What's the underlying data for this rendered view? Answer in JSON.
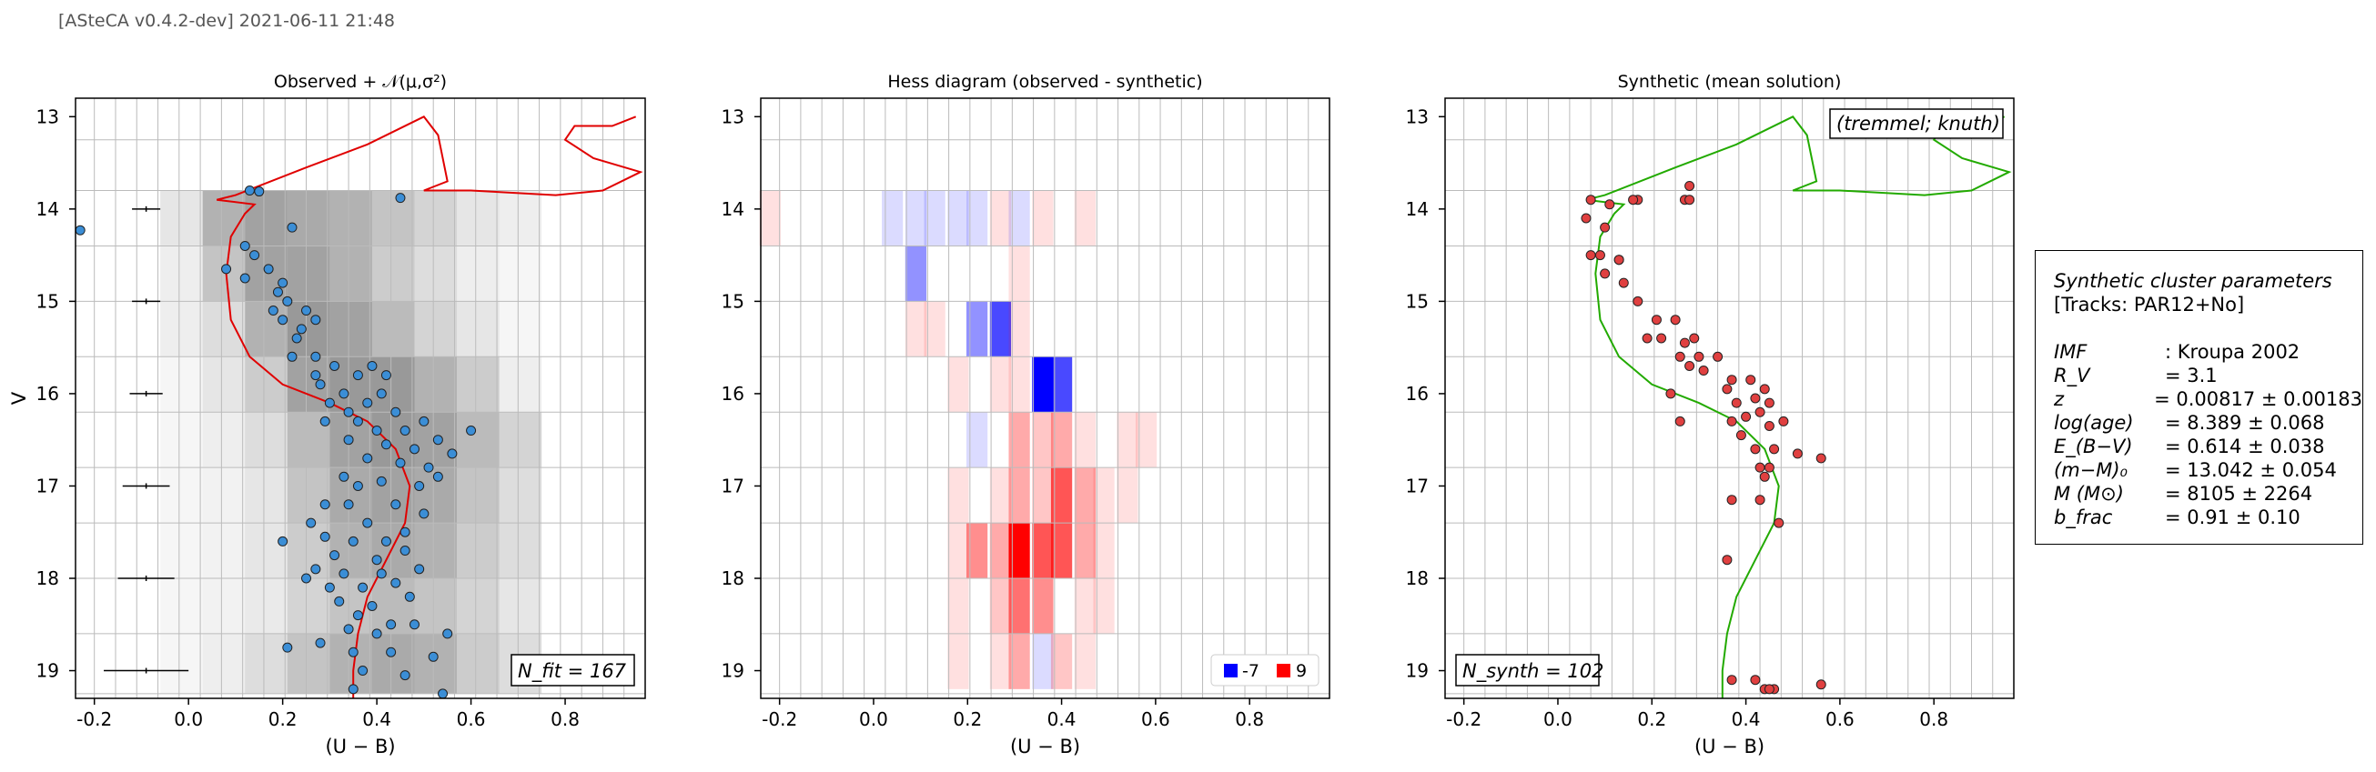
{
  "header": "[ASteCA v0.4.2-dev] 2021-06-11 21:48",
  "colors": {
    "track_observed": "#e00000",
    "track_synthetic": "#22aa00",
    "observed_points": "#3b8ed6",
    "synthetic_points": "#e04040",
    "hess_negative": "#0000ff",
    "hess_positive": "#ff0000"
  },
  "panels": [
    {
      "title": "Observed + 𝒩(μ,σ²)",
      "xlabel": "(U − B)",
      "ylabel": "V",
      "box": "N_fit = 167"
    },
    {
      "title": "Hess diagram (observed - synthetic)",
      "xlabel": "(U − B)",
      "ylabel": "",
      "legend": [
        "-7",
        "9"
      ]
    },
    {
      "title": "Synthetic (mean solution)",
      "xlabel": "(U − B)",
      "ylabel": "",
      "box": "N_synth = 102",
      "tag": "(tremmel; knuth)"
    }
  ],
  "params": {
    "title": "Synthetic cluster parameters",
    "tracks": "[Tracks: PAR12+No]",
    "rows": [
      {
        "k": "IMF",
        "v": ": Kroupa 2002"
      },
      {
        "k": "R_V",
        "v": "= 3.1"
      },
      {
        "k": "z",
        "v": "= 0.00817 ± 0.00183"
      },
      {
        "k": "log(age)",
        "v": "= 8.389 ± 0.068"
      },
      {
        "k": "E_(B−V)",
        "v": "= 0.614 ± 0.038"
      },
      {
        "k": "(m−M)₀",
        "v": "= 13.042 ± 0.054"
      },
      {
        "k": "M (M⊙)",
        "v": "= 8105 ± 2264"
      },
      {
        "k": "b_frac",
        "v": "= 0.91 ± 0.10"
      }
    ]
  },
  "chart_data": [
    {
      "type": "scatter",
      "title": "Observed + 𝒩(μ,σ²)",
      "xlabel": "(U − B)",
      "ylabel": "V",
      "xlim": [
        -0.24,
        0.97
      ],
      "ylim": [
        19.3,
        12.8
      ],
      "xticks": [
        "-0.2",
        "0.0",
        "0.2",
        "0.4",
        "0.6",
        "0.8"
      ],
      "yticks": [
        "13",
        "14",
        "15",
        "16",
        "17",
        "18",
        "19"
      ],
      "series": [
        {
          "points": [
            [
              -0.23,
              14.23
            ],
            [
              0.13,
              13.8
            ],
            [
              0.15,
              13.81
            ],
            [
              0.22,
              14.2
            ],
            [
              0.45,
              13.88
            ],
            [
              0.12,
              14.4
            ],
            [
              0.14,
              14.5
            ],
            [
              0.08,
              14.65
            ],
            [
              0.12,
              14.75
            ],
            [
              0.17,
              14.65
            ],
            [
              0.2,
              14.8
            ],
            [
              0.19,
              14.9
            ],
            [
              0.21,
              15.0
            ],
            [
              0.18,
              15.1
            ],
            [
              0.2,
              15.2
            ],
            [
              0.24,
              15.3
            ],
            [
              0.23,
              15.4
            ],
            [
              0.25,
              15.1
            ],
            [
              0.27,
              15.2
            ],
            [
              0.22,
              15.6
            ],
            [
              0.27,
              15.6
            ],
            [
              0.31,
              15.7
            ],
            [
              0.27,
              15.8
            ],
            [
              0.36,
              15.8
            ],
            [
              0.39,
              15.7
            ],
            [
              0.42,
              15.8
            ],
            [
              0.28,
              15.9
            ],
            [
              0.33,
              16.0
            ],
            [
              0.41,
              16.0
            ],
            [
              0.3,
              16.1
            ],
            [
              0.34,
              16.2
            ],
            [
              0.38,
              16.1
            ],
            [
              0.44,
              16.2
            ],
            [
              0.29,
              16.3
            ],
            [
              0.36,
              16.3
            ],
            [
              0.4,
              16.4
            ],
            [
              0.46,
              16.4
            ],
            [
              0.5,
              16.3
            ],
            [
              0.34,
              16.5
            ],
            [
              0.42,
              16.55
            ],
            [
              0.48,
              16.6
            ],
            [
              0.53,
              16.5
            ],
            [
              0.6,
              16.4
            ],
            [
              0.38,
              16.7
            ],
            [
              0.45,
              16.75
            ],
            [
              0.51,
              16.8
            ],
            [
              0.56,
              16.65
            ],
            [
              0.33,
              16.9
            ],
            [
              0.36,
              17.0
            ],
            [
              0.41,
              16.95
            ],
            [
              0.49,
              17.0
            ],
            [
              0.53,
              16.9
            ],
            [
              0.29,
              17.2
            ],
            [
              0.34,
              17.2
            ],
            [
              0.44,
              17.2
            ],
            [
              0.5,
              17.3
            ],
            [
              0.26,
              17.4
            ],
            [
              0.38,
              17.4
            ],
            [
              0.46,
              17.5
            ],
            [
              0.2,
              17.6
            ],
            [
              0.29,
              17.55
            ],
            [
              0.35,
              17.6
            ],
            [
              0.42,
              17.6
            ],
            [
              0.31,
              17.75
            ],
            [
              0.4,
              17.8
            ],
            [
              0.46,
              17.7
            ],
            [
              0.27,
              17.9
            ],
            [
              0.33,
              17.95
            ],
            [
              0.41,
              17.95
            ],
            [
              0.49,
              17.9
            ],
            [
              0.25,
              18.0
            ],
            [
              0.3,
              18.1
            ],
            [
              0.37,
              18.1
            ],
            [
              0.44,
              18.05
            ],
            [
              0.32,
              18.25
            ],
            [
              0.39,
              18.3
            ],
            [
              0.47,
              18.2
            ],
            [
              0.36,
              18.4
            ],
            [
              0.43,
              18.5
            ],
            [
              0.34,
              18.55
            ],
            [
              0.4,
              18.6
            ],
            [
              0.48,
              18.5
            ],
            [
              0.55,
              18.6
            ],
            [
              0.21,
              18.75
            ],
            [
              0.28,
              18.7
            ],
            [
              0.35,
              18.8
            ],
            [
              0.43,
              18.8
            ],
            [
              0.52,
              18.85
            ],
            [
              0.37,
              19.0
            ],
            [
              0.46,
              19.05
            ],
            [
              0.35,
              19.2
            ],
            [
              0.54,
              19.25
            ]
          ]
        }
      ],
      "errorbars": [
        [
          14.0,
          0.03
        ],
        [
          15.0,
          0.03
        ],
        [
          16.0,
          0.035
        ],
        [
          17.0,
          0.05
        ],
        [
          18.0,
          0.06
        ],
        [
          19.0,
          0.09
        ]
      ],
      "annotation": "N_fit = 167"
    },
    {
      "type": "heatmap",
      "title": "Hess diagram (observed - synthetic)",
      "xlabel": "(U − B)",
      "xlim": [
        -0.24,
        0.97
      ],
      "ylim": [
        19.3,
        12.8
      ],
      "legend": [
        "-7",
        "9"
      ],
      "cells": [
        [
          -0.22,
          14.1,
          1
        ],
        [
          0.04,
          14.1,
          -1
        ],
        [
          0.09,
          14.1,
          -1
        ],
        [
          0.13,
          14.1,
          -1
        ],
        [
          0.18,
          14.1,
          -1
        ],
        [
          0.22,
          14.1,
          -1
        ],
        [
          0.27,
          14.1,
          1
        ],
        [
          0.31,
          14.1,
          -1
        ],
        [
          0.36,
          14.1,
          1
        ],
        [
          0.45,
          14.1,
          1
        ],
        [
          0.09,
          14.7,
          -3
        ],
        [
          0.31,
          14.7,
          1
        ],
        [
          0.09,
          15.3,
          1
        ],
        [
          0.13,
          15.3,
          1
        ],
        [
          0.22,
          15.3,
          -3
        ],
        [
          0.27,
          15.3,
          -5
        ],
        [
          0.31,
          15.3,
          1
        ],
        [
          0.18,
          15.9,
          1
        ],
        [
          0.27,
          15.9,
          1
        ],
        [
          0.31,
          15.9,
          1
        ],
        [
          0.36,
          15.9,
          -7
        ],
        [
          0.4,
          15.9,
          -5
        ],
        [
          0.22,
          16.5,
          -1
        ],
        [
          0.31,
          16.5,
          3
        ],
        [
          0.36,
          16.5,
          2
        ],
        [
          0.4,
          16.5,
          3
        ],
        [
          0.45,
          16.5,
          1
        ],
        [
          0.54,
          16.5,
          1
        ],
        [
          0.58,
          16.5,
          1
        ],
        [
          0.18,
          17.1,
          1
        ],
        [
          0.27,
          17.1,
          1
        ],
        [
          0.31,
          17.1,
          3
        ],
        [
          0.36,
          17.1,
          2
        ],
        [
          0.4,
          17.1,
          6
        ],
        [
          0.45,
          17.1,
          3
        ],
        [
          0.49,
          17.1,
          1
        ],
        [
          0.54,
          17.1,
          1
        ],
        [
          0.18,
          17.7,
          1
        ],
        [
          0.22,
          17.7,
          4
        ],
        [
          0.27,
          17.7,
          3
        ],
        [
          0.31,
          17.7,
          9
        ],
        [
          0.36,
          17.7,
          6
        ],
        [
          0.4,
          17.7,
          6
        ],
        [
          0.45,
          17.7,
          3
        ],
        [
          0.49,
          17.7,
          1
        ],
        [
          0.18,
          18.3,
          1
        ],
        [
          0.27,
          18.3,
          2
        ],
        [
          0.31,
          18.3,
          5
        ],
        [
          0.36,
          18.3,
          4
        ],
        [
          0.45,
          18.3,
          1
        ],
        [
          0.49,
          18.3,
          1
        ],
        [
          0.18,
          18.9,
          1
        ],
        [
          0.27,
          18.9,
          1
        ],
        [
          0.31,
          18.9,
          3
        ],
        [
          0.36,
          18.9,
          -1
        ],
        [
          0.4,
          18.9,
          2
        ],
        [
          0.45,
          18.9,
          1
        ]
      ]
    },
    {
      "type": "scatter",
      "title": "Synthetic (mean solution)",
      "xlabel": "(U − B)",
      "xlim": [
        -0.24,
        0.97
      ],
      "ylim": [
        19.3,
        12.8
      ],
      "series": [
        {
          "points": [
            [
              0.07,
              13.9
            ],
            [
              0.11,
              13.95
            ],
            [
              0.17,
              13.9
            ],
            [
              0.27,
              13.9
            ],
            [
              0.28,
              13.75
            ],
            [
              0.06,
              14.1
            ],
            [
              0.1,
              14.2
            ],
            [
              0.07,
              14.5
            ],
            [
              0.09,
              14.5
            ],
            [
              0.13,
              14.55
            ],
            [
              0.1,
              14.7
            ],
            [
              0.14,
              14.8
            ],
            [
              0.17,
              15.0
            ],
            [
              0.21,
              15.2
            ],
            [
              0.25,
              15.2
            ],
            [
              0.19,
              15.4
            ],
            [
              0.22,
              15.4
            ],
            [
              0.27,
              15.45
            ],
            [
              0.29,
              15.4
            ],
            [
              0.26,
              15.6
            ],
            [
              0.3,
              15.6
            ],
            [
              0.34,
              15.6
            ],
            [
              0.28,
              15.7
            ],
            [
              0.31,
              15.75
            ],
            [
              0.37,
              15.85
            ],
            [
              0.41,
              15.85
            ],
            [
              0.36,
              15.95
            ],
            [
              0.44,
              15.95
            ],
            [
              0.38,
              16.1
            ],
            [
              0.42,
              16.05
            ],
            [
              0.45,
              16.1
            ],
            [
              0.37,
              16.3
            ],
            [
              0.4,
              16.25
            ],
            [
              0.43,
              16.2
            ],
            [
              0.48,
              16.3
            ],
            [
              0.39,
              16.45
            ],
            [
              0.45,
              16.35
            ],
            [
              0.42,
              16.6
            ],
            [
              0.46,
              16.6
            ],
            [
              0.51,
              16.65
            ],
            [
              0.56,
              16.7
            ],
            [
              0.43,
              16.8
            ],
            [
              0.45,
              16.8
            ],
            [
              0.37,
              17.15
            ],
            [
              0.43,
              17.15
            ],
            [
              0.47,
              17.4
            ],
            [
              0.36,
              17.8
            ],
            [
              0.37,
              19.1
            ],
            [
              0.42,
              19.1
            ],
            [
              0.44,
              19.2
            ],
            [
              0.46,
              19.2
            ],
            [
              0.56,
              19.15
            ],
            [
              0.16,
              13.9
            ],
            [
              0.28,
              13.9
            ],
            [
              0.13,
              14.55
            ],
            [
              0.24,
              16.0
            ],
            [
              0.26,
              16.3
            ],
            [
              0.44,
              16.9
            ],
            [
              0.45,
              19.2
            ]
          ]
        }
      ],
      "annotation": "N_synth = 102",
      "tag": "(tremmel; knuth)"
    }
  ]
}
